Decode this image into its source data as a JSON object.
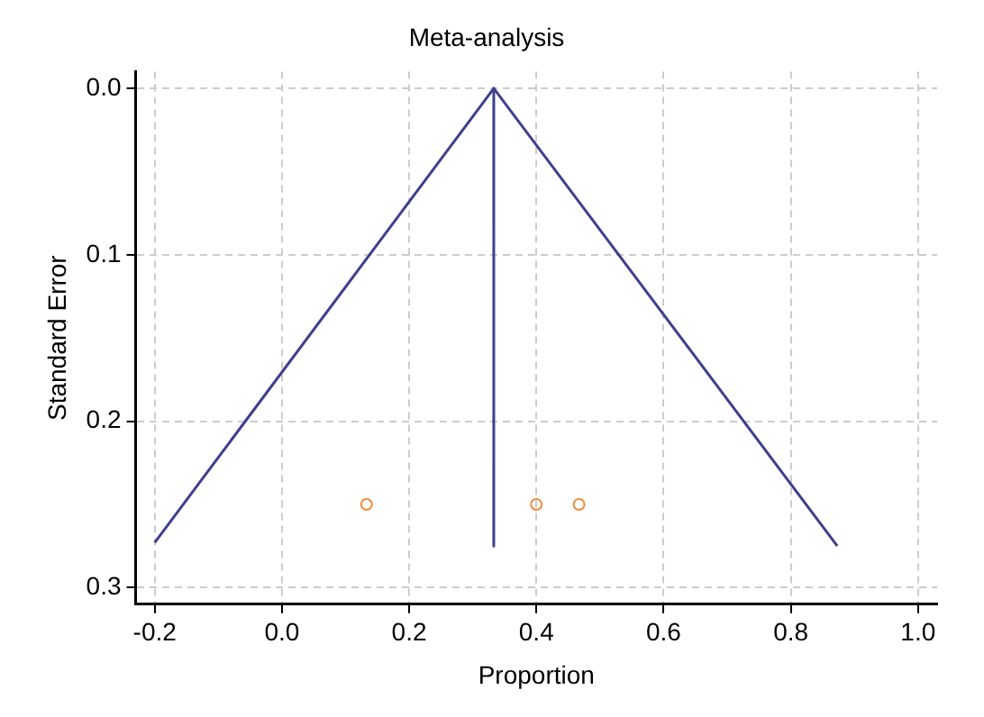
{
  "chart_data": {
    "type": "scatter",
    "title": "Meta-analysis",
    "xlabel": "Proportion",
    "ylabel": "Standard Error",
    "xlim": [
      -0.23,
      1.03
    ],
    "xticks": [
      {
        "value": -0.2,
        "label": "-0.2"
      },
      {
        "value": 0,
        "label": "0.0"
      },
      {
        "value": 0.2,
        "label": "0.2"
      },
      {
        "value": 0.4,
        "label": "0.4"
      },
      {
        "value": 0.6,
        "label": "0.6"
      },
      {
        "value": 0.8,
        "label": "0.8"
      },
      {
        "value": 1,
        "label": "1.0"
      }
    ],
    "ylim": [
      0.31,
      -0.01
    ],
    "yticks": [
      {
        "value": 0,
        "label": "0.0"
      },
      {
        "value": 0.1,
        "label": "0.1"
      },
      {
        "value": 0.2,
        "label": "0.2"
      },
      {
        "value": 0.3,
        "label": "0.3"
      }
    ],
    "grid": true,
    "legend": false,
    "series": [
      {
        "type": "line",
        "color": "#3f3f8f",
        "x": [
          -0.2,
          0.333,
          0.873
        ],
        "values": [
          0.273,
          0,
          0.275
        ],
        "marker": "none"
      },
      {
        "type": "line",
        "color": "#3f3f8f",
        "x": [
          0.333,
          0.333
        ],
        "values": [
          0,
          0.275
        ],
        "marker": "none"
      },
      {
        "type": "scatter",
        "color": "#f08a3c",
        "x": [
          0.133,
          0.4,
          0.467
        ],
        "values": [
          0.25,
          0.25,
          0.25
        ],
        "marker": "circle"
      }
    ]
  }
}
